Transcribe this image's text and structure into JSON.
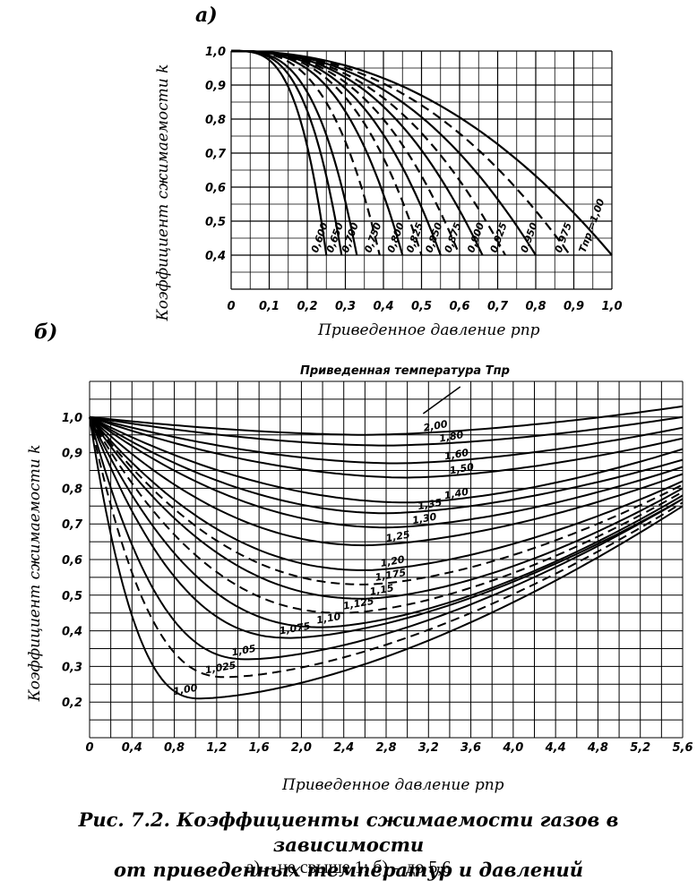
{
  "caption": {
    "title_line1": "Рис. 7.2. Коэффициенты сжимаемости газов в зависимости",
    "title_line2": "от приведенных температур и давлений",
    "subtitle": "а) – не свыше 1; б) – до 5,6"
  },
  "chart_data": [
    {
      "id": "a",
      "panel_label": "а)",
      "type": "line",
      "ylabel": "Коэффициент сжимаемости k",
      "xlabel": "Приведенное давление pпр",
      "xlim": [
        0,
        1.0
      ],
      "ylim": [
        0.3,
        1.0
      ],
      "xticks": [
        "0",
        "0,1",
        "0,2",
        "0,3",
        "0,4",
        "0,5",
        "0,6",
        "0,7",
        "0,8",
        "0,9",
        "1,0"
      ],
      "yticks": [
        "0,4",
        "0,5",
        "0,6",
        "0,7",
        "0,8",
        "0,9",
        "1,0"
      ],
      "series_label_prefix": "Тпр =",
      "series": [
        {
          "name": "1,00",
          "x_end": 1.0
        },
        {
          "name": "0,975",
          "x_end": 0.89
        },
        {
          "name": "0,950",
          "x_end": 0.8
        },
        {
          "name": "0,925",
          "x_end": 0.72
        },
        {
          "name": "0,900",
          "x_end": 0.66
        },
        {
          "name": "0,875",
          "x_end": 0.6
        },
        {
          "name": "0,850",
          "x_end": 0.55
        },
        {
          "name": "0,825",
          "x_end": 0.5
        },
        {
          "name": "0,800",
          "x_end": 0.45
        },
        {
          "name": "0,750",
          "x_end": 0.39
        },
        {
          "name": "0,700",
          "x_end": 0.33
        },
        {
          "name": "0,650",
          "x_end": 0.29
        },
        {
          "name": "0,600",
          "x_end": 0.25
        }
      ]
    },
    {
      "id": "b",
      "panel_label": "б)",
      "type": "line",
      "title": "Приведенная температура Тпр",
      "ylabel": "Коэффициент сжимаемости k",
      "xlabel": "Приведенное давление pпр",
      "xlim": [
        0,
        5.6
      ],
      "ylim": [
        0.1,
        1.1
      ],
      "xticks": [
        "0",
        "0,4",
        "0,8",
        "1,2",
        "1,6",
        "2,0",
        "2,4",
        "2,8",
        "3,2",
        "3,6",
        "4,0",
        "4,4",
        "4,8",
        "5,2",
        "5,6"
      ],
      "yticks": [
        "0,2",
        "0,3",
        "0,4",
        "0,5",
        "0,6",
        "0,7",
        "0,8",
        "0,9",
        "1,0"
      ],
      "series": [
        {
          "name": "2,00",
          "x_min": 2.6,
          "y_min": 0.95,
          "y_end": 1.03
        },
        {
          "name": "1,80",
          "x_min": 2.8,
          "y_min": 0.92,
          "y_end": 1.0
        },
        {
          "name": "1,60",
          "x_min": 2.9,
          "y_min": 0.87,
          "y_end": 0.97
        },
        {
          "name": "1,50",
          "x_min": 3.0,
          "y_min": 0.83,
          "y_end": 0.94
        },
        {
          "name": "1,40",
          "x_min": 3.0,
          "y_min": 0.76,
          "y_end": 0.91
        },
        {
          "name": "1,35",
          "x_min": 2.8,
          "y_min": 0.73,
          "y_end": 0.88
        },
        {
          "name": "1,30",
          "x_min": 2.8,
          "y_min": 0.69,
          "y_end": 0.86
        },
        {
          "name": "1,25",
          "x_min": 2.6,
          "y_min": 0.64,
          "y_end": 0.84
        },
        {
          "name": "1,20",
          "x_min": 2.6,
          "y_min": 0.57,
          "y_end": 0.82
        },
        {
          "name": "1,175",
          "x_min": 2.6,
          "y_min": 0.53,
          "y_end": 0.81
        },
        {
          "name": "1,15",
          "x_min": 2.6,
          "y_min": 0.49,
          "y_end": 0.8
        },
        {
          "name": "1,125",
          "x_min": 2.4,
          "y_min": 0.45,
          "y_end": 0.79
        },
        {
          "name": "1,10",
          "x_min": 2.2,
          "y_min": 0.41,
          "y_end": 0.78
        },
        {
          "name": "1,075",
          "x_min": 1.9,
          "y_min": 0.38,
          "y_end": 0.77
        },
        {
          "name": "1,05",
          "x_min": 1.5,
          "y_min": 0.32,
          "y_end": 0.77
        },
        {
          "name": "1,025",
          "x_min": 1.3,
          "y_min": 0.27,
          "y_end": 0.76
        },
        {
          "name": "1,00",
          "x_min": 1.05,
          "y_min": 0.21,
          "y_end": 0.75
        }
      ]
    }
  ]
}
